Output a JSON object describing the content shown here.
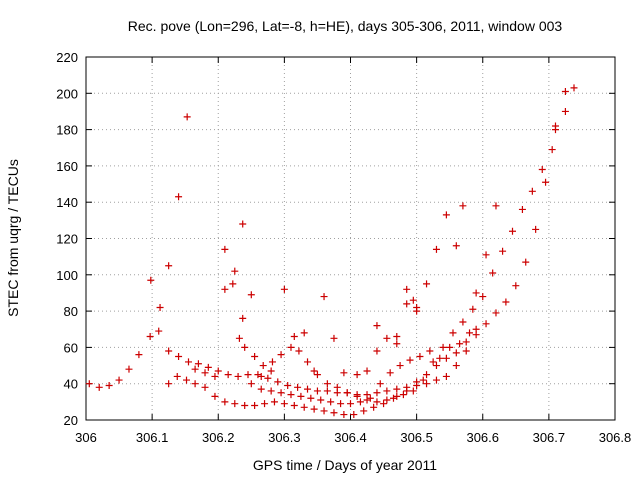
{
  "chart_data": {
    "type": "scatter",
    "title": "Rec. pove (Lon=296, Lat=-8, h=HE), days 305-306, 2011, window 003",
    "xlabel": "GPS time / Days of year 2011",
    "ylabel": "STEC from uqrg / TECUs",
    "xlim": [
      306,
      306.8
    ],
    "ylim": [
      20,
      220
    ],
    "xticks": [
      "306",
      "306.1",
      "306.2",
      "306.3",
      "306.4",
      "306.5",
      "306.6",
      "306.7",
      "306.8"
    ],
    "yticks": [
      "20",
      "40",
      "60",
      "80",
      "100",
      "120",
      "140",
      "160",
      "180",
      "200",
      "220"
    ],
    "grid": true,
    "marker": "+",
    "color": "#cc0000",
    "series": [
      {
        "points": [
          [
            306.005,
            40
          ],
          [
            306.02,
            38
          ],
          [
            306.035,
            39
          ],
          [
            306.05,
            42
          ],
          [
            306.065,
            48
          ],
          [
            306.08,
            56
          ],
          [
            306.097,
            66
          ],
          [
            306.11,
            69
          ],
          [
            306.125,
            58
          ],
          [
            306.14,
            55
          ],
          [
            306.155,
            52
          ],
          [
            306.17,
            51
          ],
          [
            306.185,
            49
          ],
          [
            306.2,
            47
          ],
          [
            306.215,
            45
          ],
          [
            306.23,
            44
          ],
          [
            306.245,
            45
          ],
          [
            306.26,
            45
          ],
          [
            306.275,
            43
          ],
          [
            306.29,
            41
          ],
          [
            306.305,
            39
          ],
          [
            306.32,
            38
          ],
          [
            306.335,
            37
          ],
          [
            306.35,
            36
          ],
          [
            306.365,
            36
          ],
          [
            306.38,
            35
          ],
          [
            306.395,
            35
          ],
          [
            306.41,
            34
          ],
          [
            306.425,
            34
          ],
          [
            306.44,
            35
          ],
          [
            306.455,
            36
          ],
          [
            306.47,
            37
          ],
          [
            306.485,
            38
          ],
          [
            306.5,
            39
          ],
          [
            306.515,
            40
          ],
          [
            306.53,
            42
          ],
          [
            306.545,
            44
          ],
          [
            306.56,
            50
          ],
          [
            306.575,
            58
          ],
          [
            306.59,
            67
          ],
          [
            306.605,
            73
          ],
          [
            306.62,
            79
          ],
          [
            306.635,
            85
          ],
          [
            306.65,
            94
          ],
          [
            306.665,
            107
          ],
          [
            306.68,
            125
          ],
          [
            306.695,
            151
          ],
          [
            306.71,
            180
          ],
          [
            306.725,
            190
          ]
        ]
      },
      {
        "points": [
          [
            306.098,
            97
          ],
          [
            306.112,
            82
          ],
          [
            306.125,
            40
          ],
          [
            306.138,
            44
          ],
          [
            306.152,
            42
          ],
          [
            306.165,
            40
          ],
          [
            306.18,
            38
          ],
          [
            306.195,
            33
          ],
          [
            306.21,
            30
          ],
          [
            306.225,
            29
          ],
          [
            306.24,
            28
          ],
          [
            306.255,
            28
          ],
          [
            306.27,
            29
          ],
          [
            306.285,
            30
          ],
          [
            306.3,
            29
          ],
          [
            306.315,
            28
          ],
          [
            306.33,
            27
          ],
          [
            306.345,
            26
          ],
          [
            306.36,
            25
          ],
          [
            306.375,
            24
          ],
          [
            306.39,
            23
          ],
          [
            306.405,
            23
          ],
          [
            306.42,
            25
          ],
          [
            306.435,
            27
          ],
          [
            306.45,
            29
          ],
          [
            306.465,
            32
          ],
          [
            306.48,
            34
          ],
          [
            306.495,
            36
          ],
          [
            306.51,
            42
          ],
          [
            306.525,
            52
          ],
          [
            306.54,
            60
          ],
          [
            306.555,
            68
          ],
          [
            306.57,
            74
          ],
          [
            306.585,
            81
          ],
          [
            306.6,
            88
          ],
          [
            306.615,
            101
          ],
          [
            306.63,
            113
          ],
          [
            306.645,
            124
          ],
          [
            306.66,
            136
          ],
          [
            306.675,
            146
          ],
          [
            306.69,
            158
          ],
          [
            306.705,
            169
          ],
          [
            306.71,
            182
          ],
          [
            306.725,
            201
          ],
          [
            306.738,
            203
          ]
        ]
      },
      {
        "points": [
          [
            306.125,
            105
          ],
          [
            306.14,
            143
          ],
          [
            306.153,
            187
          ],
          [
            306.165,
            48
          ],
          [
            306.18,
            46
          ],
          [
            306.195,
            44
          ],
          [
            306.21,
            114
          ],
          [
            306.225,
            102
          ],
          [
            306.237,
            128
          ],
          [
            306.25,
            89
          ],
          [
            306.265,
            44
          ],
          [
            306.28,
            47
          ],
          [
            306.3,
            92
          ],
          [
            306.315,
            66
          ],
          [
            306.33,
            68
          ],
          [
            306.345,
            47
          ],
          [
            306.36,
            88
          ],
          [
            306.375,
            65
          ],
          [
            306.39,
            46
          ],
          [
            306.41,
            45
          ],
          [
            306.425,
            47
          ],
          [
            306.44,
            58
          ],
          [
            306.455,
            65
          ],
          [
            306.47,
            66
          ],
          [
            306.485,
            84
          ],
          [
            306.5,
            80
          ],
          [
            306.515,
            95
          ],
          [
            306.53,
            114
          ],
          [
            306.545,
            133
          ],
          [
            306.56,
            116
          ],
          [
            306.57,
            138
          ],
          [
            306.59,
            90
          ],
          [
            306.605,
            111
          ],
          [
            306.62,
            138
          ]
        ]
      },
      {
        "points": [
          [
            306.21,
            92
          ],
          [
            306.222,
            95
          ],
          [
            306.232,
            65
          ],
          [
            306.24,
            60
          ],
          [
            306.255,
            55
          ],
          [
            306.268,
            50
          ],
          [
            306.282,
            52
          ],
          [
            306.295,
            56
          ],
          [
            306.31,
            60
          ],
          [
            306.322,
            58
          ],
          [
            306.335,
            52
          ],
          [
            306.35,
            45
          ],
          [
            306.365,
            40
          ],
          [
            306.38,
            38
          ],
          [
            306.395,
            35
          ],
          [
            306.41,
            33
          ],
          [
            306.425,
            31
          ],
          [
            306.44,
            30
          ],
          [
            306.455,
            31
          ],
          [
            306.47,
            33
          ],
          [
            306.485,
            36
          ],
          [
            306.5,
            41
          ],
          [
            306.515,
            45
          ],
          [
            306.53,
            50
          ],
          [
            306.545,
            54
          ],
          [
            306.56,
            57
          ],
          [
            306.575,
            63
          ],
          [
            306.59,
            70
          ]
        ]
      },
      {
        "points": [
          [
            306.237,
            76
          ],
          [
            306.25,
            40
          ],
          [
            306.265,
            37
          ],
          [
            306.28,
            36
          ],
          [
            306.295,
            35
          ],
          [
            306.31,
            34
          ],
          [
            306.325,
            33
          ],
          [
            306.34,
            32
          ],
          [
            306.355,
            31
          ],
          [
            306.37,
            30
          ],
          [
            306.385,
            29
          ],
          [
            306.4,
            29
          ],
          [
            306.415,
            30
          ],
          [
            306.43,
            32
          ],
          [
            306.445,
            40
          ],
          [
            306.46,
            46
          ],
          [
            306.475,
            50
          ],
          [
            306.49,
            53
          ],
          [
            306.505,
            55
          ],
          [
            306.52,
            58
          ],
          [
            306.535,
            54
          ],
          [
            306.55,
            60
          ],
          [
            306.565,
            62
          ],
          [
            306.58,
            68
          ],
          [
            306.44,
            72
          ],
          [
            306.47,
            62
          ],
          [
            306.485,
            92
          ],
          [
            306.495,
            86
          ],
          [
            306.5,
            82
          ]
        ]
      }
    ]
  }
}
